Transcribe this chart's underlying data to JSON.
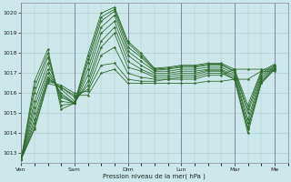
{
  "bg_color": "#cce8ea",
  "grid_color": "#aacccc",
  "line_color": "#2d6b2d",
  "ylabel_text": "Pression niveau de la mer( hPa )",
  "ylim": [
    1012.5,
    1020.5
  ],
  "yticks": [
    1013,
    1014,
    1015,
    1016,
    1017,
    1018,
    1019,
    1020
  ],
  "days": [
    "Ven",
    "Sam",
    "Dim",
    "Lun",
    "Mar",
    "Me"
  ],
  "day_positions": [
    0,
    24,
    48,
    72,
    96,
    114
  ],
  "xlim": [
    0,
    120
  ],
  "series": [
    [
      1012.7,
      1014.2,
      1016.5,
      1016.3,
      1015.9,
      1015.9,
      1017.0,
      1017.2,
      1016.5,
      1016.5,
      1016.5,
      1016.5,
      1016.5,
      1016.5,
      1016.6,
      1016.6,
      1016.7,
      1016.7,
      1017.1,
      1017.1
    ],
    [
      1012.7,
      1014.3,
      1016.6,
      1016.4,
      1016.0,
      1016.1,
      1017.4,
      1017.5,
      1016.7,
      1016.6,
      1016.6,
      1016.7,
      1016.7,
      1016.7,
      1016.9,
      1016.9,
      1017.2,
      1017.2,
      1017.2,
      1017.2
    ],
    [
      1012.7,
      1014.5,
      1016.7,
      1016.3,
      1015.8,
      1016.2,
      1017.9,
      1018.3,
      1017.0,
      1016.8,
      1016.7,
      1016.7,
      1016.8,
      1016.8,
      1017.0,
      1017.0,
      1016.7,
      1014.3,
      1016.5,
      1017.2
    ],
    [
      1012.7,
      1014.7,
      1016.8,
      1016.2,
      1015.6,
      1016.4,
      1018.3,
      1019.0,
      1017.3,
      1017.1,
      1016.8,
      1016.8,
      1016.9,
      1016.9,
      1017.1,
      1017.1,
      1016.7,
      1014.0,
      1016.5,
      1017.2
    ],
    [
      1012.7,
      1015.0,
      1017.0,
      1016.0,
      1015.5,
      1016.6,
      1018.6,
      1019.3,
      1017.6,
      1017.2,
      1016.9,
      1016.9,
      1017.0,
      1017.0,
      1017.15,
      1017.15,
      1016.8,
      1014.2,
      1016.6,
      1017.2
    ],
    [
      1012.7,
      1015.3,
      1017.2,
      1015.9,
      1015.5,
      1016.9,
      1019.0,
      1019.6,
      1017.9,
      1017.4,
      1017.0,
      1017.0,
      1017.1,
      1017.1,
      1017.2,
      1017.2,
      1016.9,
      1014.5,
      1016.7,
      1017.25
    ],
    [
      1012.7,
      1015.6,
      1017.5,
      1015.8,
      1015.5,
      1017.2,
      1019.3,
      1019.9,
      1018.1,
      1017.6,
      1017.1,
      1017.1,
      1017.2,
      1017.2,
      1017.3,
      1017.3,
      1017.0,
      1014.7,
      1016.8,
      1017.3
    ],
    [
      1012.7,
      1016.0,
      1017.8,
      1015.6,
      1015.5,
      1017.5,
      1019.6,
      1020.1,
      1018.3,
      1017.8,
      1017.15,
      1017.2,
      1017.3,
      1017.3,
      1017.4,
      1017.4,
      1017.1,
      1015.0,
      1016.9,
      1017.35
    ],
    [
      1012.7,
      1016.3,
      1018.0,
      1015.4,
      1015.5,
      1017.7,
      1019.8,
      1020.2,
      1018.5,
      1017.9,
      1017.2,
      1017.25,
      1017.35,
      1017.35,
      1017.45,
      1017.45,
      1017.1,
      1015.2,
      1017.0,
      1017.4
    ],
    [
      1012.7,
      1016.6,
      1018.2,
      1015.2,
      1015.5,
      1017.9,
      1020.0,
      1020.3,
      1018.6,
      1018.0,
      1017.25,
      1017.3,
      1017.4,
      1017.4,
      1017.5,
      1017.5,
      1017.2,
      1015.4,
      1017.1,
      1017.45
    ]
  ],
  "x_steps": [
    0,
    6,
    12,
    18,
    24,
    30,
    36,
    42,
    48,
    54,
    60,
    66,
    72,
    78,
    84,
    90,
    96,
    102,
    108,
    114
  ]
}
